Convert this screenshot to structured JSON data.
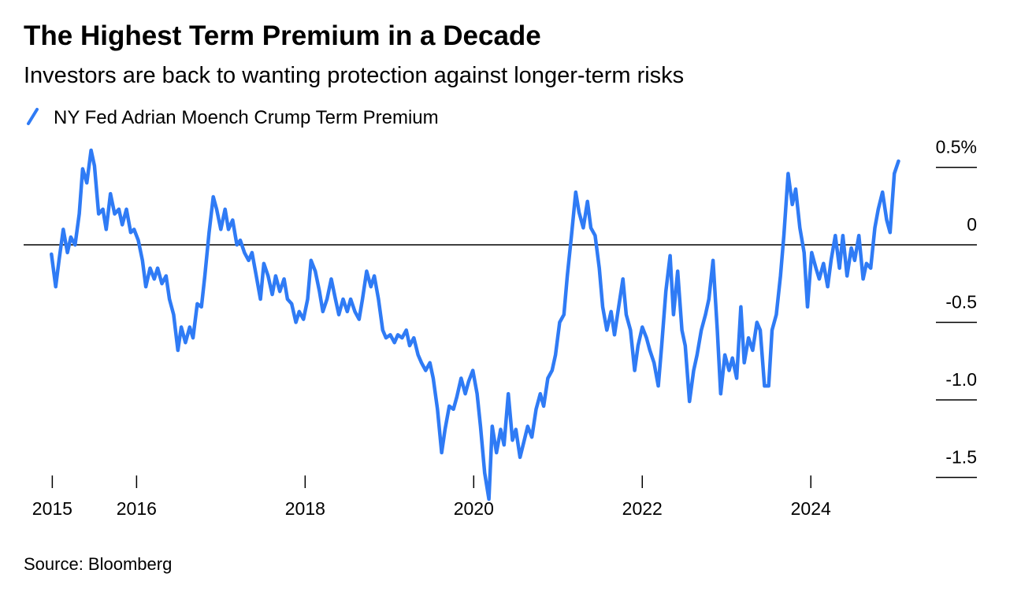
{
  "chart_data": {
    "type": "line",
    "title": "The Highest Term Premium in a Decade",
    "subtitle": "Investors are back to wanting protection against longer-term risks",
    "source": "Source: Bloomberg",
    "xlim": [
      2014.66,
      2025.97
    ],
    "xticks": [
      2015,
      2016,
      2018,
      2020,
      2022,
      2024
    ],
    "ylim": [
      -1.67,
      0.64
    ],
    "yticks": [
      {
        "value": 0.5,
        "label": "0.5%"
      },
      0,
      -0.5,
      {
        "value": -1,
        "label": "-1.0"
      },
      -1.5
    ],
    "grid": false,
    "series": [
      {
        "name": "NY Fed Adrian Moench Crump Term Premium",
        "color": "#2f7bf5",
        "x": [
          2014.99,
          2015.04,
          2015.08,
          2015.13,
          2015.18,
          2015.22,
          2015.27,
          2015.32,
          2015.36,
          2015.41,
          2015.46,
          2015.5,
          2015.55,
          2015.6,
          2015.64,
          2015.69,
          2015.74,
          2015.79,
          2015.83,
          2015.88,
          2015.93,
          2015.97,
          2016.02,
          2016.07,
          2016.11,
          2016.16,
          2016.21,
          2016.25,
          2016.3,
          2016.35,
          2016.39,
          2016.44,
          2016.49,
          2016.53,
          2016.58,
          2016.63,
          2016.67,
          2016.72,
          2016.77,
          2016.81,
          2016.86,
          2016.91,
          2016.95,
          2017.0,
          2017.05,
          2017.09,
          2017.14,
          2017.19,
          2017.23,
          2017.28,
          2017.33,
          2017.37,
          2017.42,
          2017.47,
          2017.51,
          2017.56,
          2017.61,
          2017.65,
          2017.7,
          2017.75,
          2017.79,
          2017.84,
          2017.89,
          2017.93,
          2017.98,
          2018.03,
          2018.07,
          2018.12,
          2018.17,
          2018.21,
          2018.26,
          2018.31,
          2018.36,
          2018.4,
          2018.45,
          2018.5,
          2018.54,
          2018.59,
          2018.64,
          2018.68,
          2018.73,
          2018.78,
          2018.82,
          2018.87,
          2018.92,
          2018.96,
          2019.01,
          2019.06,
          2019.1,
          2019.15,
          2019.2,
          2019.24,
          2019.29,
          2019.34,
          2019.38,
          2019.43,
          2019.48,
          2019.52,
          2019.57,
          2019.62,
          2019.66,
          2019.71,
          2019.76,
          2019.8,
          2019.85,
          2019.9,
          2019.94,
          2019.99,
          2020.04,
          2020.08,
          2020.13,
          2020.18,
          2020.22,
          2020.27,
          2020.32,
          2020.36,
          2020.41,
          2020.46,
          2020.5,
          2020.55,
          2020.6,
          2020.64,
          2020.69,
          2020.74,
          2020.79,
          2020.83,
          2020.88,
          2020.93,
          2020.97,
          2021.02,
          2021.07,
          2021.11,
          2021.16,
          2021.21,
          2021.25,
          2021.3,
          2021.35,
          2021.39,
          2021.44,
          2021.49,
          2021.53,
          2021.58,
          2021.63,
          2021.67,
          2021.72,
          2021.77,
          2021.81,
          2021.86,
          2021.91,
          2021.95,
          2022.0,
          2022.05,
          2022.09,
          2022.14,
          2022.19,
          2022.23,
          2022.28,
          2022.33,
          2022.37,
          2022.42,
          2022.47,
          2022.51,
          2022.56,
          2022.61,
          2022.65,
          2022.7,
          2022.75,
          2022.79,
          2022.84,
          2022.89,
          2022.93,
          2022.98,
          2023.03,
          2023.07,
          2023.12,
          2023.17,
          2023.21,
          2023.26,
          2023.31,
          2023.36,
          2023.4,
          2023.45,
          2023.5,
          2023.54,
          2023.59,
          2023.64,
          2023.68,
          2023.73,
          2023.78,
          2023.82,
          2023.87,
          2023.92,
          2023.96,
          2024.01,
          2024.06,
          2024.1,
          2024.15,
          2024.2,
          2024.24,
          2024.29,
          2024.34,
          2024.38,
          2024.43,
          2024.48,
          2024.52,
          2024.57,
          2024.62,
          2024.66,
          2024.71,
          2024.76,
          2024.8,
          2024.85,
          2024.9,
          2024.94,
          2024.99,
          2025.04
        ],
        "values": [
          -0.06,
          -0.27,
          -0.1,
          0.1,
          -0.05,
          0.05,
          0,
          0.2,
          0.49,
          0.4,
          0.61,
          0.51,
          0.2,
          0.23,
          0.1,
          0.33,
          0.2,
          0.23,
          0.13,
          0.23,
          0.08,
          0.1,
          0.03,
          -0.1,
          -0.27,
          -0.15,
          -0.22,
          -0.15,
          -0.25,
          -0.2,
          -0.35,
          -0.45,
          -0.68,
          -0.53,
          -0.63,
          -0.53,
          -0.6,
          -0.38,
          -0.4,
          -0.2,
          0.08,
          0.31,
          0.23,
          0.1,
          0.23,
          0.1,
          0.16,
          0,
          0.03,
          -0.05,
          -0.1,
          -0.05,
          -0.2,
          -0.35,
          -0.12,
          -0.2,
          -0.32,
          -0.2,
          -0.3,
          -0.22,
          -0.35,
          -0.38,
          -0.5,
          -0.43,
          -0.48,
          -0.35,
          -0.1,
          -0.17,
          -0.3,
          -0.43,
          -0.35,
          -0.22,
          -0.35,
          -0.45,
          -0.35,
          -0.43,
          -0.35,
          -0.43,
          -0.48,
          -0.35,
          -0.17,
          -0.27,
          -0.2,
          -0.35,
          -0.55,
          -0.6,
          -0.58,
          -0.63,
          -0.58,
          -0.6,
          -0.55,
          -0.65,
          -0.6,
          -0.71,
          -0.76,
          -0.81,
          -0.76,
          -0.86,
          -1.06,
          -1.34,
          -1.19,
          -1.04,
          -1.06,
          -0.98,
          -0.86,
          -0.96,
          -0.88,
          -0.81,
          -0.96,
          -1.17,
          -1.47,
          -1.64,
          -1.17,
          -1.34,
          -1.19,
          -1.29,
          -0.96,
          -1.26,
          -1.19,
          -1.37,
          -1.26,
          -1.17,
          -1.24,
          -1.06,
          -0.96,
          -1.04,
          -0.86,
          -0.81,
          -0.71,
          -0.5,
          -0.45,
          -0.2,
          0.06,
          0.34,
          0.21,
          0.11,
          0.28,
          0.11,
          0.06,
          -0.15,
          -0.4,
          -0.55,
          -0.43,
          -0.58,
          -0.4,
          -0.22,
          -0.45,
          -0.55,
          -0.81,
          -0.65,
          -0.53,
          -0.6,
          -0.68,
          -0.76,
          -0.91,
          -0.65,
          -0.3,
          -0.07,
          -0.45,
          -0.17,
          -0.55,
          -0.65,
          -1.01,
          -0.81,
          -0.71,
          -0.55,
          -0.45,
          -0.35,
          -0.1,
          -0.55,
          -0.96,
          -0.71,
          -0.81,
          -0.73,
          -0.86,
          -0.4,
          -0.76,
          -0.6,
          -0.68,
          -0.5,
          -0.55,
          -0.91,
          -0.91,
          -0.55,
          -0.45,
          -0.2,
          0.06,
          0.46,
          0.26,
          0.36,
          0.11,
          -0.05,
          -0.4,
          -0.05,
          -0.15,
          -0.22,
          -0.12,
          -0.27,
          -0.1,
          0.06,
          -0.15,
          0.06,
          -0.2,
          -0.02,
          -0.1,
          0.06,
          -0.22,
          -0.12,
          -0.15,
          0.11,
          0.23,
          0.34,
          0.16,
          0.08,
          0.46,
          0.54
        ]
      }
    ]
  }
}
